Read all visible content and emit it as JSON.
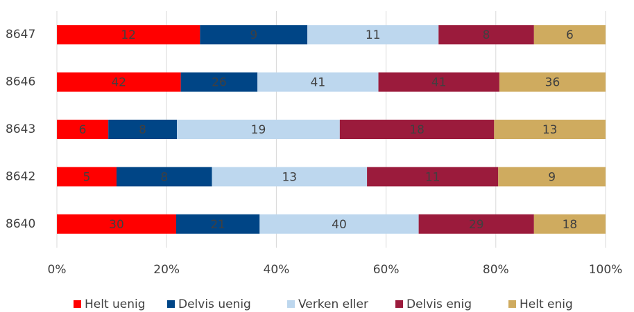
{
  "chart_data": {
    "type": "bar",
    "orientation": "horizontal",
    "stacking": "percent",
    "categories": [
      "8647",
      "8646",
      "8643",
      "8642",
      "8640"
    ],
    "series": [
      {
        "name": "Helt uenig",
        "color": "#ff0000",
        "values": [
          12,
          42,
          6,
          5,
          30
        ]
      },
      {
        "name": "Delvis uenig",
        "color": "#004586",
        "values": [
          9,
          26,
          8,
          8,
          21
        ]
      },
      {
        "name": "Verken eller",
        "color": "#bdd7ee",
        "values": [
          11,
          41,
          19,
          13,
          40
        ]
      },
      {
        "name": "Delvis enig",
        "color": "#9b1b3c",
        "values": [
          8,
          41,
          18,
          11,
          29
        ]
      },
      {
        "name": "Helt enig",
        "color": "#cfab5f",
        "values": [
          6,
          36,
          13,
          9,
          18
        ]
      }
    ],
    "xlim": [
      0,
      100
    ],
    "xticks": [
      {
        "value": 0,
        "label": "0%"
      },
      {
        "value": 20,
        "label": "20%"
      },
      {
        "value": 40,
        "label": "40%"
      },
      {
        "value": 60,
        "label": "60%"
      },
      {
        "value": 80,
        "label": "80%"
      },
      {
        "value": 100,
        "label": "100%"
      }
    ],
    "grid": true,
    "legend": "bottom"
  }
}
